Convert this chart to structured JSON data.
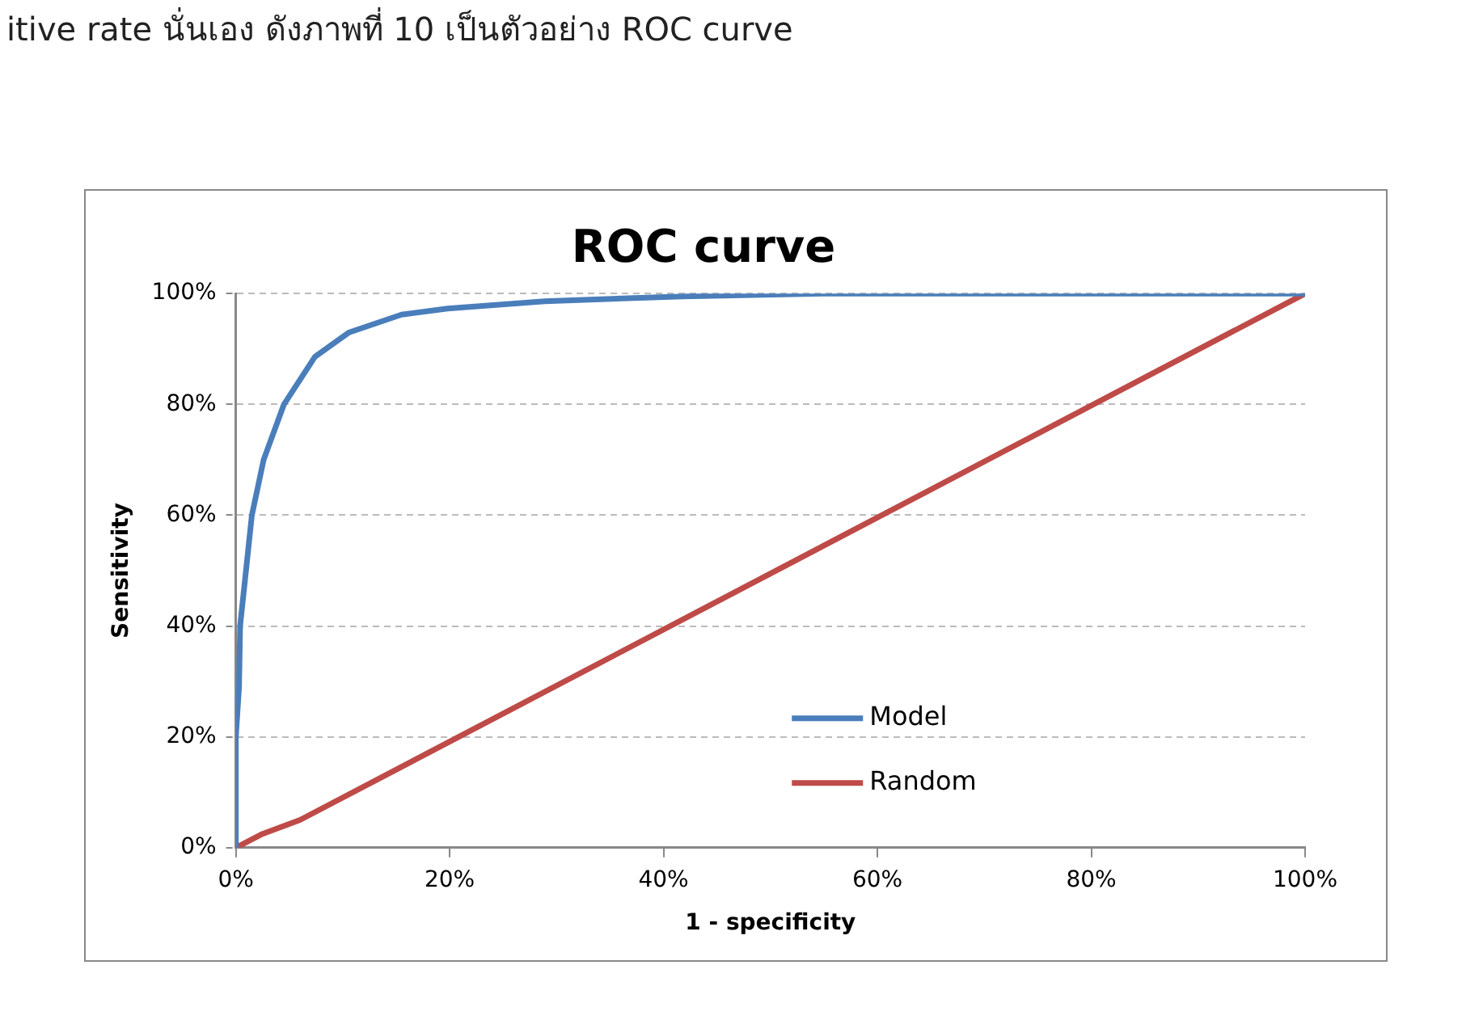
{
  "chart_data": {
    "type": "line",
    "title": "ROC curve",
    "xlabel": "1 - specificity",
    "ylabel": "Sensitivity",
    "annotations": [
      "itive rate นั่นเอง ดังภาพที่ 10 เป็นตัวอย่าง ROC curve"
    ],
    "series": [
      {
        "name": "Model",
        "color": "#4a7ebb",
        "x": [
          0,
          0,
          0.3,
          0.4,
          1.5,
          2.6,
          4.5,
          7.4,
          10.6,
          15.5,
          19.8,
          28.9,
          41.8,
          55,
          100
        ],
        "values": [
          0,
          20,
          29,
          40,
          60,
          70,
          80,
          88.6,
          93,
          96.2,
          97.3,
          98.6,
          99.5,
          100,
          100
        ]
      },
      {
        "name": "Random",
        "color": "#be4b48",
        "x": [
          0,
          2.5,
          6,
          100
        ],
        "values": [
          0,
          2.5,
          5,
          100
        ]
      }
    ],
    "xlim": [
      0,
      100
    ],
    "ylim": [
      0,
      100
    ],
    "xticks": [
      {
        "value": 0,
        "label": "0%"
      },
      {
        "value": 20,
        "label": "20%"
      },
      {
        "value": 40,
        "label": "40%"
      },
      {
        "value": 60,
        "label": "60%"
      },
      {
        "value": 80,
        "label": "80%"
      },
      {
        "value": 100,
        "label": "100%"
      }
    ],
    "yticks": [
      {
        "value": 0,
        "label": "0%"
      },
      {
        "value": 20,
        "label": "20%"
      },
      {
        "value": 40,
        "label": "40%"
      },
      {
        "value": 60,
        "label": "60%"
      },
      {
        "value": 80,
        "label": "80%"
      },
      {
        "value": 100,
        "label": "100%"
      }
    ],
    "grid": "y",
    "legend": "bottom right",
    "marker": "none",
    "line_style": "solid"
  }
}
